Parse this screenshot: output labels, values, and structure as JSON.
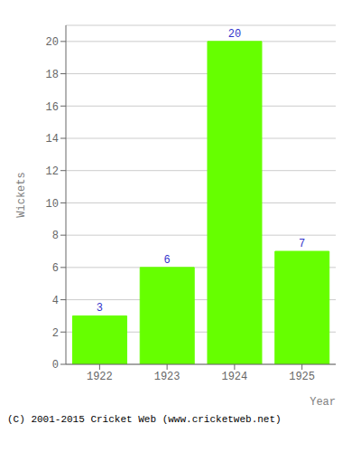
{
  "chart_data": {
    "type": "bar",
    "categories": [
      "1922",
      "1923",
      "1924",
      "1925"
    ],
    "values": [
      3,
      6,
      20,
      7
    ],
    "color": "#66ff00",
    "xlabel": "Year",
    "ylabel": "Wickets",
    "ylim": [
      0,
      21
    ],
    "yticks": [
      0,
      2,
      4,
      6,
      8,
      10,
      12,
      14,
      16,
      18,
      20
    ],
    "grid": true,
    "data_labels": true,
    "annotations": [
      "(C) 2001-2015 Cricket Web (www.cricketweb.net)"
    ]
  }
}
